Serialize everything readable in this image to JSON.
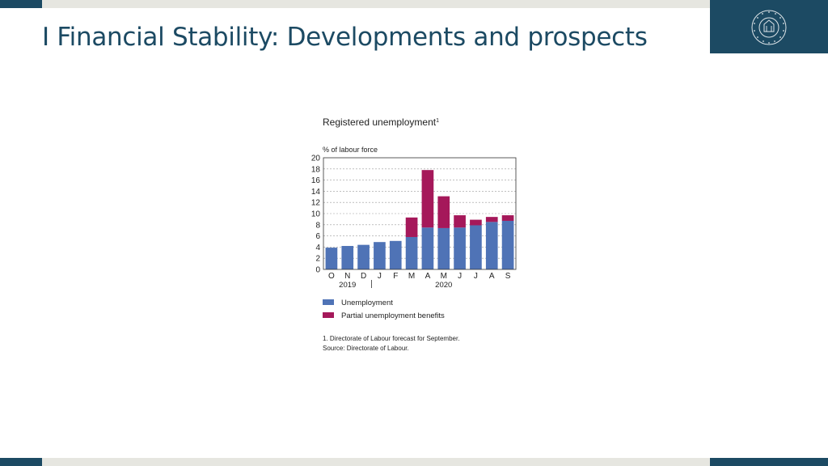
{
  "slide": {
    "title": "I Financial Stability: Developments and prospects",
    "logo_text": "SEÐLABANKI ÍSLANDS",
    "colors": {
      "brand": "#1c4a63",
      "strip": "#e6e6e0"
    }
  },
  "chart_data": {
    "type": "bar",
    "stacked": true,
    "title": "Registered unemployment",
    "title_footnote_mark": "1",
    "ylabel": "% of labour force",
    "xlabel": "",
    "ylim": [
      0,
      20
    ],
    "yticks": [
      0,
      2,
      4,
      6,
      8,
      10,
      12,
      14,
      16,
      18,
      20
    ],
    "categories": [
      "O",
      "N",
      "D",
      "J",
      "F",
      "M",
      "A",
      "M",
      "J",
      "J",
      "A",
      "S"
    ],
    "year_labels": [
      {
        "label": "2019",
        "span": [
          0,
          2
        ]
      },
      {
        "label": "2020",
        "span": [
          3,
          11
        ]
      }
    ],
    "series": [
      {
        "name": "Unemployment",
        "color": "#4f73b6",
        "values": [
          3.9,
          4.2,
          4.4,
          4.9,
          5.1,
          5.8,
          7.5,
          7.4,
          7.5,
          7.9,
          8.5,
          8.7
        ]
      },
      {
        "name": "Partial unemployment benefits",
        "color": "#a5185a",
        "values": [
          0,
          0,
          0,
          0,
          0,
          3.5,
          10.3,
          5.7,
          2.2,
          1.0,
          0.9,
          1.0
        ]
      }
    ],
    "grid": true,
    "legend_position": "bottom-left",
    "footnotes": [
      "1. Directorate of Labour forecast for September.",
      "Source: Directorate of Labour."
    ]
  }
}
